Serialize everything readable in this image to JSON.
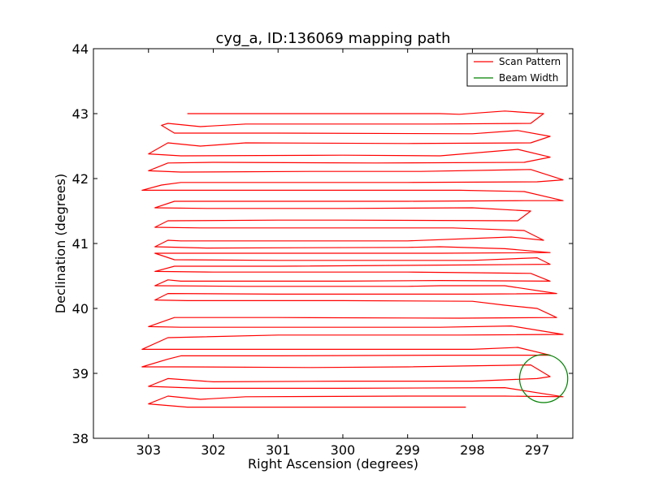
{
  "chart_data": {
    "type": "line",
    "title": "cyg_a, ID:136069 mapping path",
    "xlabel": "Right Ascension (degrees)",
    "ylabel": "Declination (degrees)",
    "xlim": [
      303.85,
      296.45
    ],
    "ylim": [
      38,
      44
    ],
    "x_ticks": [
      303,
      302,
      301,
      300,
      299,
      298,
      297
    ],
    "y_ticks": [
      38,
      39,
      40,
      41,
      42,
      43,
      44
    ],
    "grid": false,
    "legend_position": "top-right",
    "series": [
      {
        "name": "Scan Pattern",
        "color": "#ff0000",
        "points": [
          [
            302.4,
            43.0
          ],
          [
            298.5,
            43.0
          ],
          [
            298.2,
            42.99
          ],
          [
            297.5,
            43.04
          ],
          [
            296.9,
            43.0
          ],
          [
            297.1,
            42.85
          ],
          [
            298.6,
            42.84
          ],
          [
            301.0,
            42.84
          ],
          [
            301.5,
            42.84
          ],
          [
            302.2,
            42.8
          ],
          [
            302.7,
            42.85
          ],
          [
            302.8,
            42.82
          ],
          [
            302.6,
            42.7
          ],
          [
            301.0,
            42.7
          ],
          [
            298.0,
            42.69
          ],
          [
            297.3,
            42.74
          ],
          [
            296.8,
            42.65
          ],
          [
            297.1,
            42.55
          ],
          [
            299.0,
            42.54
          ],
          [
            301.5,
            42.55
          ],
          [
            302.2,
            42.5
          ],
          [
            302.7,
            42.55
          ],
          [
            303.0,
            42.38
          ],
          [
            302.5,
            42.35
          ],
          [
            300.0,
            42.36
          ],
          [
            298.5,
            42.35
          ],
          [
            297.3,
            42.45
          ],
          [
            296.8,
            42.33
          ],
          [
            297.2,
            42.25
          ],
          [
            299.5,
            42.24
          ],
          [
            302.0,
            42.25
          ],
          [
            302.7,
            42.24
          ],
          [
            303.0,
            42.12
          ],
          [
            302.5,
            42.1
          ],
          [
            300.5,
            42.11
          ],
          [
            298.8,
            42.11
          ],
          [
            297.1,
            42.14
          ],
          [
            296.6,
            41.98
          ],
          [
            297.0,
            41.95
          ],
          [
            299.0,
            41.94
          ],
          [
            302.5,
            41.94
          ],
          [
            302.8,
            41.9
          ],
          [
            303.1,
            41.82
          ],
          [
            302.5,
            41.82
          ],
          [
            300.0,
            41.82
          ],
          [
            298.2,
            41.82
          ],
          [
            297.2,
            41.8
          ],
          [
            296.6,
            41.66
          ],
          [
            297.2,
            41.66
          ],
          [
            299.0,
            41.65
          ],
          [
            302.0,
            41.65
          ],
          [
            302.6,
            41.65
          ],
          [
            302.9,
            41.55
          ],
          [
            302.1,
            41.54
          ],
          [
            300.0,
            41.54
          ],
          [
            298.0,
            41.55
          ],
          [
            297.1,
            41.5
          ],
          [
            297.3,
            41.35
          ],
          [
            300.0,
            41.36
          ],
          [
            301.0,
            41.36
          ],
          [
            302.7,
            41.35
          ],
          [
            302.9,
            41.25
          ],
          [
            302.2,
            41.24
          ],
          [
            299.5,
            41.24
          ],
          [
            298.3,
            41.24
          ],
          [
            297.2,
            41.2
          ],
          [
            296.9,
            41.05
          ],
          [
            297.4,
            41.1
          ],
          [
            299.0,
            41.04
          ],
          [
            302.5,
            41.04
          ],
          [
            302.7,
            41.05
          ],
          [
            302.9,
            40.95
          ],
          [
            302.1,
            40.93
          ],
          [
            299.0,
            40.94
          ],
          [
            298.5,
            40.95
          ],
          [
            297.5,
            40.92
          ],
          [
            296.8,
            40.86
          ],
          [
            298.5,
            40.85
          ],
          [
            300.0,
            40.85
          ],
          [
            302.0,
            40.85
          ],
          [
            302.9,
            40.85
          ],
          [
            302.6,
            40.75
          ],
          [
            301.0,
            40.74
          ],
          [
            298.0,
            40.74
          ],
          [
            297.0,
            40.78
          ],
          [
            296.8,
            40.68
          ],
          [
            298.0,
            40.67
          ],
          [
            301.0,
            40.65
          ],
          [
            302.6,
            40.65
          ],
          [
            302.9,
            40.57
          ],
          [
            302.0,
            40.56
          ],
          [
            299.0,
            40.56
          ],
          [
            298.0,
            40.55
          ],
          [
            297.1,
            40.54
          ],
          [
            296.8,
            40.42
          ],
          [
            298.5,
            40.43
          ],
          [
            300.0,
            40.42
          ],
          [
            302.5,
            40.42
          ],
          [
            302.7,
            40.44
          ],
          [
            302.9,
            40.35
          ],
          [
            301.5,
            40.34
          ],
          [
            299.0,
            40.34
          ],
          [
            298.5,
            40.35
          ],
          [
            297.5,
            40.35
          ],
          [
            296.7,
            40.23
          ],
          [
            298.0,
            40.22
          ],
          [
            301.0,
            40.22
          ],
          [
            302.7,
            40.23
          ],
          [
            302.9,
            40.13
          ],
          [
            302.4,
            40.12
          ],
          [
            300.0,
            40.12
          ],
          [
            298.0,
            40.11
          ],
          [
            297.5,
            40.05
          ],
          [
            297.0,
            40.0
          ],
          [
            296.7,
            39.86
          ],
          [
            298.2,
            39.85
          ],
          [
            301.0,
            39.86
          ],
          [
            302.6,
            39.86
          ],
          [
            303.0,
            39.72
          ],
          [
            302.5,
            39.71
          ],
          [
            300.0,
            39.71
          ],
          [
            298.5,
            39.71
          ],
          [
            297.4,
            39.73
          ],
          [
            296.6,
            39.6
          ],
          [
            298.2,
            39.59
          ],
          [
            301.0,
            39.59
          ],
          [
            302.7,
            39.55
          ],
          [
            303.1,
            39.37
          ],
          [
            302.5,
            39.37
          ],
          [
            300.0,
            39.37
          ],
          [
            298.0,
            39.37
          ],
          [
            297.3,
            39.4
          ],
          [
            296.8,
            39.28
          ],
          [
            298.5,
            39.28
          ],
          [
            301.0,
            39.27
          ],
          [
            302.5,
            39.27
          ],
          [
            302.7,
            39.22
          ],
          [
            303.1,
            39.1
          ],
          [
            302.5,
            39.1
          ],
          [
            300.5,
            39.09
          ],
          [
            299.0,
            39.1
          ],
          [
            297.1,
            39.13
          ],
          [
            296.8,
            38.95
          ],
          [
            297.0,
            38.92
          ],
          [
            298.0,
            38.88
          ],
          [
            300.0,
            38.88
          ],
          [
            302.0,
            38.87
          ],
          [
            302.7,
            38.92
          ],
          [
            303.0,
            38.8
          ],
          [
            302.2,
            38.77
          ],
          [
            300.0,
            38.77
          ],
          [
            297.5,
            38.78
          ],
          [
            296.6,
            38.64
          ],
          [
            297.5,
            38.65
          ],
          [
            299.0,
            38.65
          ],
          [
            301.5,
            38.64
          ],
          [
            302.2,
            38.6
          ],
          [
            302.7,
            38.65
          ],
          [
            303.0,
            38.53
          ],
          [
            302.4,
            38.48
          ],
          [
            300.0,
            38.48
          ],
          [
            298.3,
            38.48
          ],
          [
            298.1,
            38.48
          ]
        ]
      },
      {
        "name": "Beam Width",
        "color": "#008000",
        "shape": "circle",
        "center": [
          296.9,
          38.92
        ],
        "radius_deg": 0.37
      }
    ]
  }
}
